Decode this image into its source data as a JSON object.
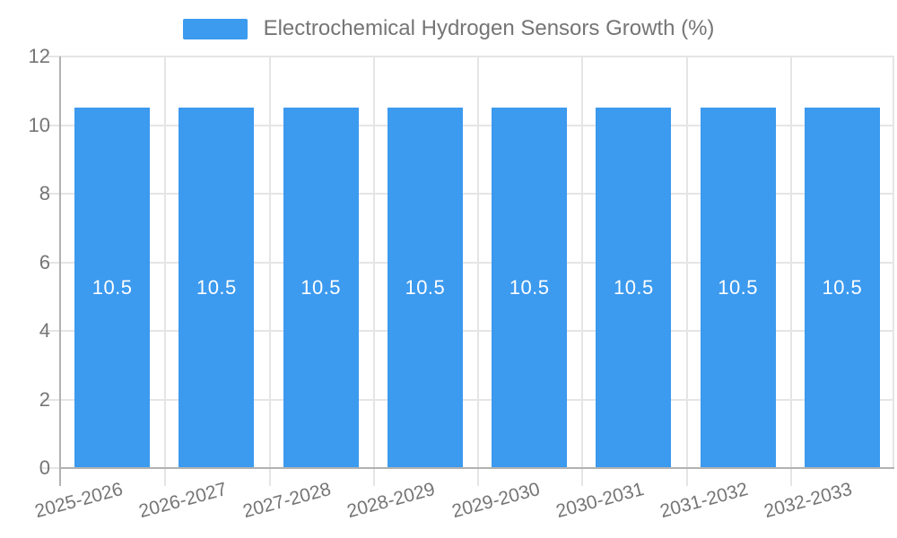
{
  "chart_data": {
    "type": "bar",
    "title": "Electrochemical Hydrogen Sensors Growth (%)",
    "categories": [
      "2025-2026",
      "2026-2027",
      "2027-2028",
      "2028-2029",
      "2029-2030",
      "2030-2031",
      "2031-2032",
      "2032-2033"
    ],
    "series": [
      {
        "name": "Electrochemical Hydrogen Sensors Growth (%)",
        "values": [
          10.5,
          10.5,
          10.5,
          10.5,
          10.5,
          10.5,
          10.5,
          10.5
        ]
      }
    ],
    "value_label_format": "10.5",
    "xlabel": "",
    "ylabel": "",
    "ylim": [
      0,
      12
    ],
    "yticks": [
      0,
      2,
      4,
      6,
      8,
      10,
      12
    ],
    "grid": true,
    "legend_position": "top-center",
    "colors": {
      "bar": "#3C9AEF",
      "grid": "#e5e5e5",
      "axis": "#b2b2b2",
      "tick_label": "#757575",
      "legend_text": "#757575",
      "value_label": "#ffffff",
      "background": "#ffffff"
    }
  }
}
